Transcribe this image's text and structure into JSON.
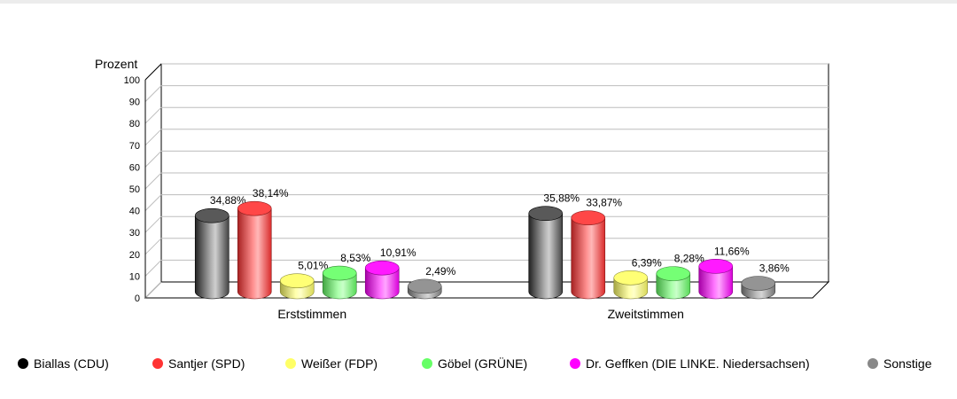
{
  "chart_data": {
    "type": "bar",
    "ylabel": "Prozent",
    "ylim": [
      0,
      100
    ],
    "yticks": [
      0,
      10,
      20,
      30,
      40,
      50,
      60,
      70,
      80,
      90,
      100
    ],
    "grid": true,
    "categories": [
      "Erststimmen",
      "Zweitstimmen"
    ],
    "series": [
      {
        "name": "Biallas (CDU)",
        "color": "#000000",
        "values": [
          34.88,
          35.88
        ],
        "labels": [
          "34,88%",
          "35,88%"
        ]
      },
      {
        "name": "Santjer (SPD)",
        "color": "#ff3333",
        "values": [
          38.14,
          33.87
        ],
        "labels": [
          "38,14%",
          "33,87%"
        ]
      },
      {
        "name": "Weißer (FDP)",
        "color": "#ffff66",
        "values": [
          5.01,
          6.39
        ],
        "labels": [
          "5,01%",
          "6,39%"
        ]
      },
      {
        "name": "Göbel (GRÜNE)",
        "color": "#66ff66",
        "values": [
          8.53,
          8.28
        ],
        "labels": [
          "8,53%",
          "8,28%"
        ]
      },
      {
        "name": "Dr. Geffken (DIE LINKE. Niedersachsen)",
        "color": "#ff00ff",
        "values": [
          10.91,
          11.66
        ],
        "labels": [
          "10,91%",
          "11,66%"
        ]
      },
      {
        "name": "Sonstige",
        "color": "#888888",
        "values": [
          2.49,
          3.86
        ],
        "labels": [
          "2,49%",
          "3,86%"
        ]
      }
    ],
    "legend_position": "bottom"
  },
  "legend": {
    "items": [
      {
        "label": "Biallas (CDU)",
        "color": "#000000"
      },
      {
        "label": "Santjer (SPD)",
        "color": "#ff3333"
      },
      {
        "label": "Weißer (FDP)",
        "color": "#ffff66"
      },
      {
        "label": "Göbel (GRÜNE)",
        "color": "#66ff66"
      },
      {
        "label": "Dr. Geffken (DIE LINKE. Niedersachsen)",
        "color": "#ff00ff"
      },
      {
        "label": "Sonstige",
        "color": "#888888"
      }
    ]
  }
}
